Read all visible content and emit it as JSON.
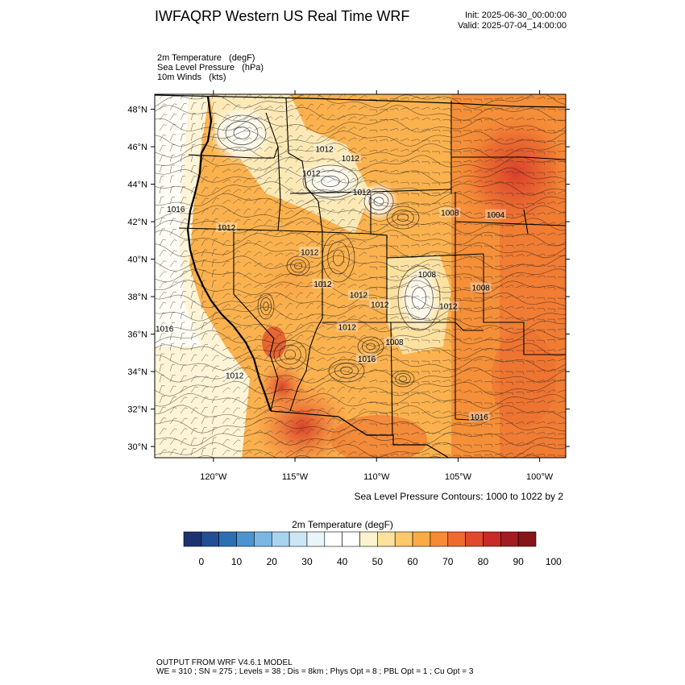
{
  "header": {
    "title": "IWFAQRP Western US Real Time WRF",
    "init": "Init: 2025-06-30_00:00:00",
    "valid": "Valid: 2025-07-04_14:00:00"
  },
  "fields": [
    "2m Temperature   (degF)",
    "Sea Level Pressure   (hPa)",
    "10m Winds   (kts)"
  ],
  "map": {
    "lat_ticks": [
      "48°N",
      "46°N",
      "44°N",
      "42°N",
      "40°N",
      "38°N",
      "36°N",
      "34°N",
      "32°N",
      "30°N"
    ],
    "lon_ticks": [
      "120°W",
      "115°W",
      "110°W",
      "105°W",
      "100°W"
    ],
    "lat_range": [
      29.4,
      48.8
    ],
    "lon_range": [
      -123.6,
      -98.4
    ],
    "slp_labels": [
      {
        "text": "1012",
        "lat": 45.9,
        "lon": -113.2
      },
      {
        "text": "1012",
        "lat": 45.4,
        "lon": -111.6
      },
      {
        "text": "1012",
        "lat": 44.6,
        "lon": -114.0
      },
      {
        "text": "1012",
        "lat": 43.6,
        "lon": -110.9
      },
      {
        "text": "1016",
        "lat": 42.7,
        "lon": -122.3
      },
      {
        "text": "1012",
        "lat": 41.7,
        "lon": -119.2
      },
      {
        "text": "1008",
        "lat": 42.5,
        "lon": -105.5
      },
      {
        "text": "1004",
        "lat": 42.4,
        "lon": -102.7
      },
      {
        "text": "1012",
        "lat": 40.4,
        "lon": -114.1
      },
      {
        "text": "1008",
        "lat": 39.2,
        "lon": -106.9
      },
      {
        "text": "1012",
        "lat": 38.7,
        "lon": -113.3
      },
      {
        "text": "1008",
        "lat": 38.5,
        "lon": -103.6
      },
      {
        "text": "1012",
        "lat": 38.1,
        "lon": -111.1
      },
      {
        "text": "1012",
        "lat": 37.6,
        "lon": -109.8
      },
      {
        "text": "1012",
        "lat": 37.5,
        "lon": -105.6
      },
      {
        "text": "1016",
        "lat": 36.3,
        "lon": -123.0
      },
      {
        "text": "1012",
        "lat": 36.4,
        "lon": -111.8
      },
      {
        "text": "1008",
        "lat": 35.6,
        "lon": -108.9
      },
      {
        "text": "1016",
        "lat": 34.7,
        "lon": -110.6
      },
      {
        "text": "1012",
        "lat": 33.8,
        "lon": -118.7
      },
      {
        "text": "1016",
        "lat": 31.6,
        "lon": -103.7
      }
    ]
  },
  "slp_note": "Sea Level Pressure Contours: 1000 to 1022 by 2",
  "colorbar": {
    "title": "2m Temperature  (degF)",
    "colors": [
      "#1c3370",
      "#234d94",
      "#2d6fb3",
      "#4b94d0",
      "#7ab7e3",
      "#a7d4f1",
      "#cde6f6",
      "#eaf4fb",
      "#ffffff",
      "#ffffff",
      "#fdf3cf",
      "#fde29c",
      "#fdc869",
      "#fbaa45",
      "#f78a35",
      "#ef6a2d",
      "#e04a2b",
      "#c82a25",
      "#a41c20",
      "#861517"
    ],
    "labels": [
      "0",
      "10",
      "20",
      "30",
      "40",
      "50",
      "60",
      "70",
      "80",
      "90",
      "100"
    ]
  },
  "footer": {
    "line1": "OUTPUT FROM WRF V4.6.1 MODEL",
    "line2": "WE = 310 ; SN = 275 ; Levels = 38 ; Dis = 8km ; Phys Opt = 8 ; PBL Opt = 1 ; Cu Opt = 3"
  }
}
